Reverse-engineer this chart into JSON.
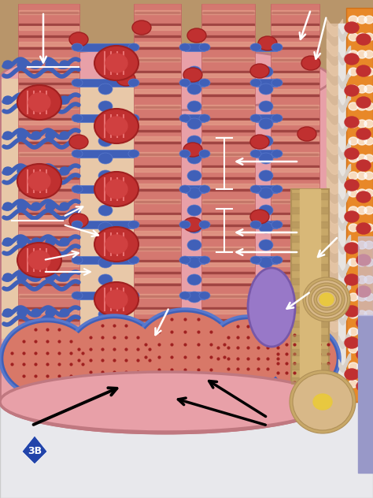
{
  "fig_w": 4.74,
  "fig_h": 6.32,
  "dpi": 100,
  "bg_wood": "#b8956a",
  "bg_wood2": "#a07850",
  "platform_color": "#e8e8ec",
  "platform_edge": "#cccccc",
  "sarcolemma_pink": "#e8a0a8",
  "sarcolemma_edge": "#c07880",
  "myofibril_pink": "#d47870",
  "myofibril_dark": "#c06060",
  "striation_dark": "#8b3030",
  "striation_light": "#e8a090",
  "sarcoplasm_peach": "#e8c8a8",
  "sarcoplasm_edge": "#c8a888",
  "sr_blue": "#4060b8",
  "sr_blue2": "#5878cc",
  "mito_red": "#c03030",
  "mito_red2": "#a02020",
  "cross_red": "#c86858",
  "cross_bg": "#d87868",
  "nerve_purple": "#9878c8",
  "nerve_purple2": "#7858a8",
  "myelin_tan": "#c8a868",
  "myelin_tan2": "#b09058",
  "myelin_yellow": "#e8c840",
  "outer_orange": "#e88828",
  "outer_orange2": "#d07018",
  "schwann_yellow": "#e8d888",
  "schwann_white": "#f0ece8",
  "connective_peach": "#d8b898",
  "logo_blue": "#2244aa",
  "logo_red": "#cc2222",
  "white": "#ffffff",
  "black": "#000000"
}
